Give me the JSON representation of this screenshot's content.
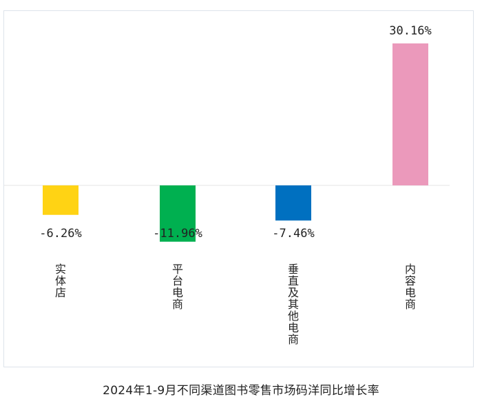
{
  "chart_data": {
    "type": "bar",
    "title": "2024年1-9月不同渠道图书零售市场码洋同比增长率",
    "categories": [
      "实体店",
      "平台电商",
      "垂直及其他电商",
      "内容电商"
    ],
    "values": [
      -6.26,
      -11.96,
      -7.46,
      30.16
    ],
    "value_labels": [
      "-6.26%",
      "-11.96%",
      "-7.46%",
      "30.16%"
    ],
    "colors": [
      "#ffd314",
      "#00b050",
      "#0070c0",
      "#eb99bb"
    ],
    "xlabel": "",
    "ylabel": "",
    "ylim": [
      -12,
      31
    ],
    "legend": "none",
    "grid": false
  }
}
